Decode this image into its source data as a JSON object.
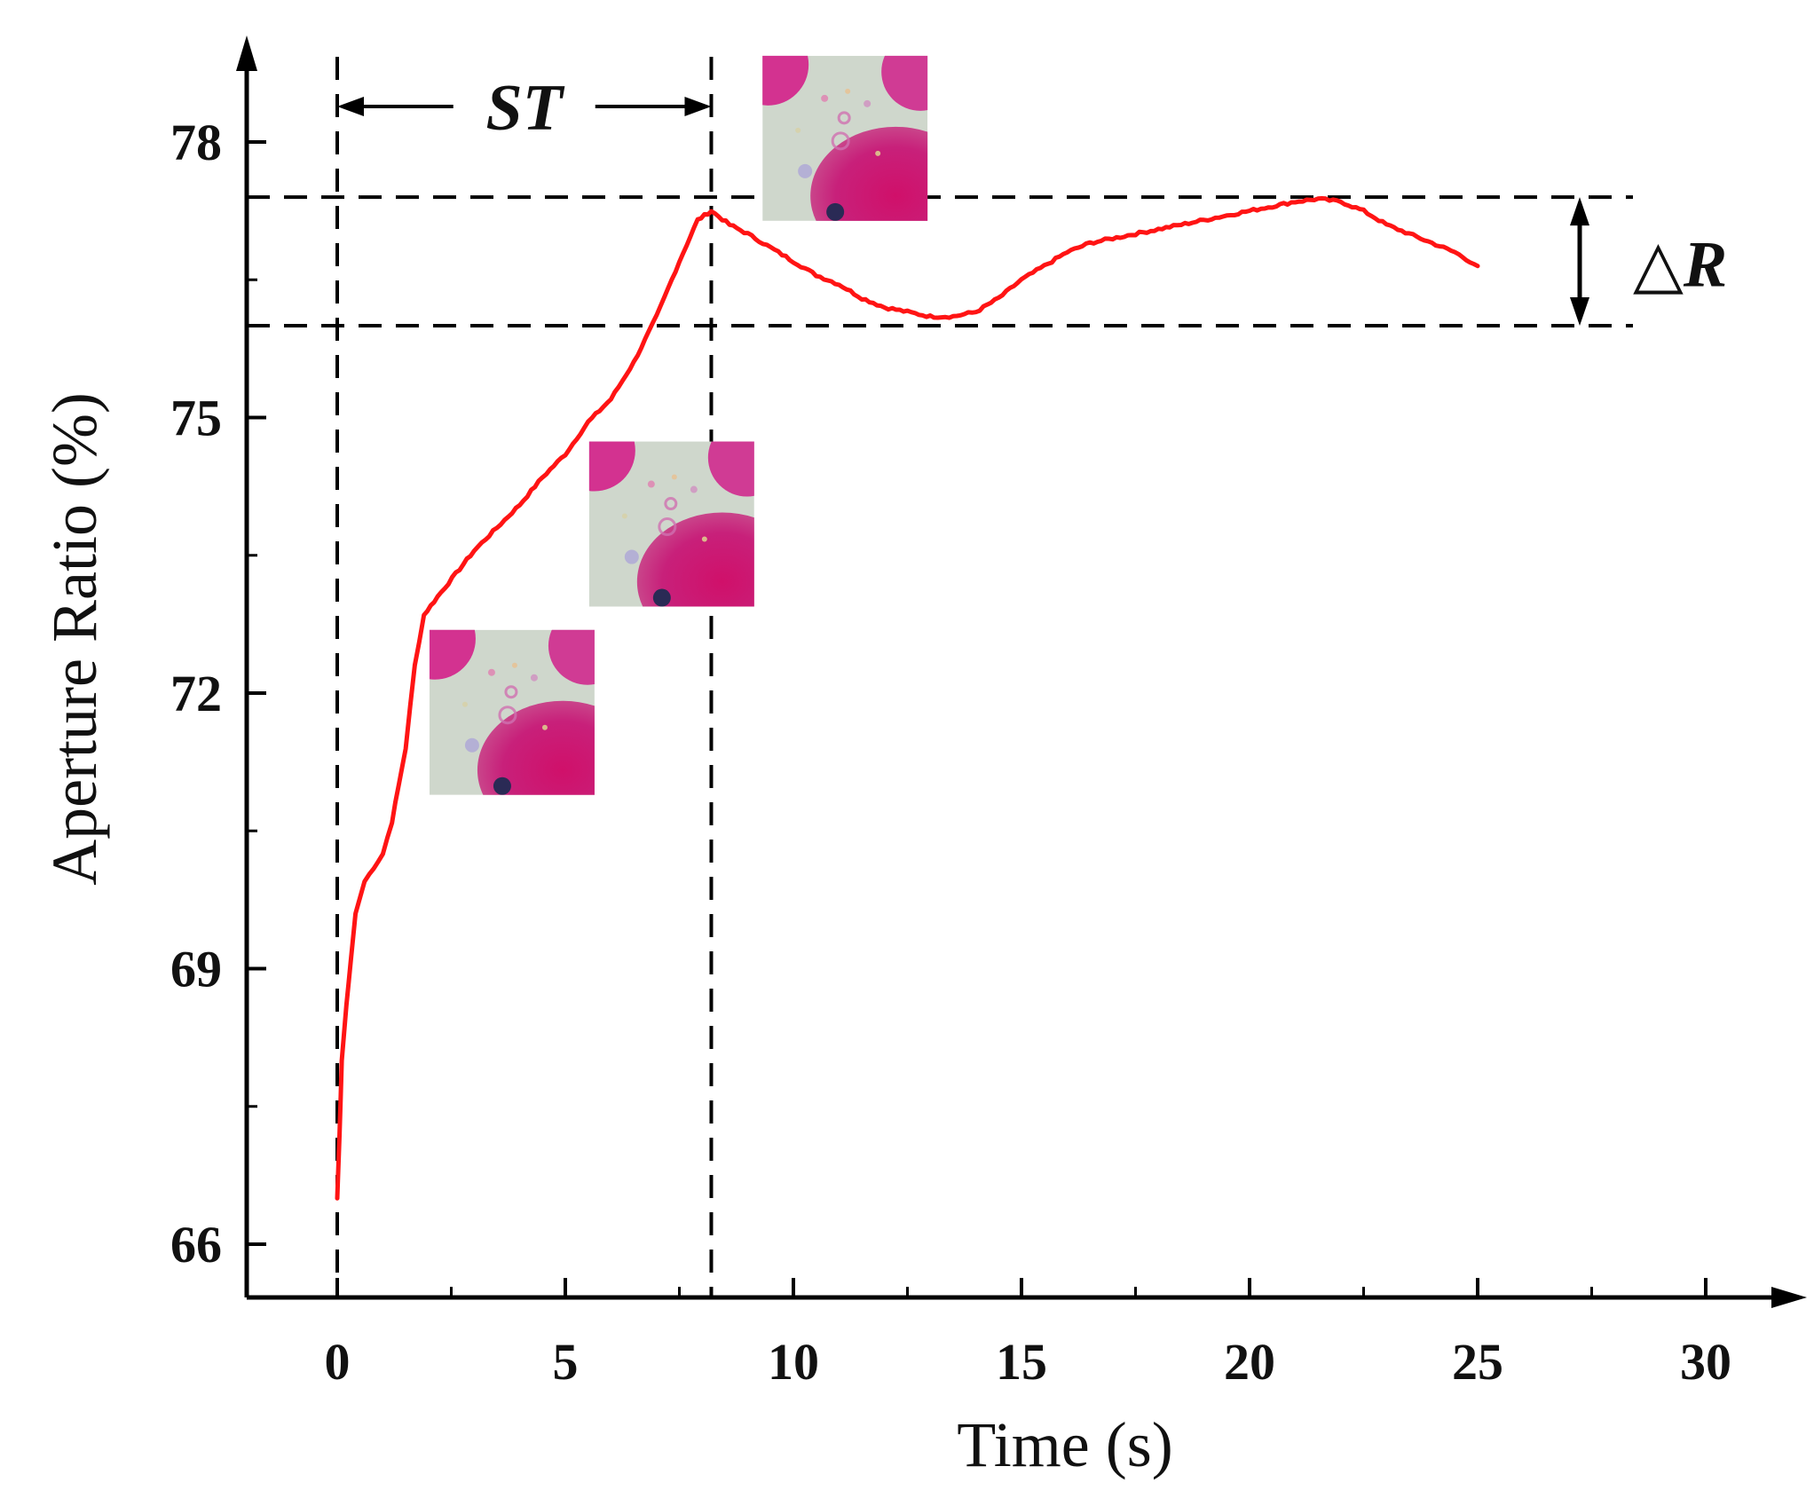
{
  "chart_data": {
    "type": "line",
    "title": "",
    "xlabel": "Time (s)",
    "ylabel": "Aperture Ratio (%)",
    "xlim": [
      -2,
      31
    ],
    "ylim": [
      65.5,
      78.8
    ],
    "xticks": [
      0,
      5,
      10,
      15,
      20,
      25,
      30
    ],
    "xtick_labels": [
      "0",
      "5",
      "10",
      "15",
      "20",
      "25",
      "30"
    ],
    "yticks": [
      66,
      69,
      72,
      75,
      78
    ],
    "ytick_labels": [
      "66",
      "69",
      "72",
      "75",
      "78"
    ],
    "grid": false,
    "series": [
      {
        "name": "Aperture Ratio",
        "color": "#ff1414",
        "x": [
          0,
          0.05,
          0.1,
          0.2,
          0.3,
          0.4,
          0.6,
          0.8,
          1.0,
          1.2,
          1.5,
          1.7,
          1.9,
          2.2,
          2.6,
          3.0,
          3.5,
          4.0,
          4.5,
          5.0,
          5.5,
          6.0,
          6.5,
          7.0,
          7.5,
          7.9,
          8.2,
          8.6,
          9.0,
          9.5,
          10.0,
          10.5,
          11.0,
          11.5,
          12.0,
          12.5,
          13.0,
          13.5,
          14.0,
          14.5,
          15.0,
          15.5,
          16.0,
          16.5,
          17.0,
          17.5,
          18.0,
          18.5,
          19.0,
          19.5,
          20.0,
          20.5,
          21.0,
          21.5,
          22.0,
          22.5,
          23.0,
          23.5,
          24.0,
          24.5,
          25.0
        ],
        "values": [
          66.5,
          67.2,
          68.0,
          68.6,
          69.1,
          69.6,
          69.95,
          70.1,
          70.25,
          70.6,
          71.4,
          72.3,
          72.85,
          73.05,
          73.3,
          73.55,
          73.8,
          74.05,
          74.35,
          74.6,
          74.95,
          75.2,
          75.6,
          76.1,
          76.7,
          77.15,
          77.25,
          77.1,
          77.0,
          76.85,
          76.7,
          76.55,
          76.45,
          76.3,
          76.2,
          76.15,
          76.1,
          76.1,
          76.15,
          76.3,
          76.5,
          76.65,
          76.8,
          76.9,
          76.95,
          77.0,
          77.05,
          77.1,
          77.15,
          77.2,
          77.25,
          77.3,
          77.35,
          77.38,
          77.35,
          77.25,
          77.1,
          77.0,
          76.9,
          76.8,
          76.65
        ]
      }
    ],
    "reference_lines": {
      "vertical_x": [
        0,
        8.2
      ],
      "horizontal_y": [
        77.4,
        76.0
      ]
    },
    "annotations": {
      "st_label": "ST",
      "delta_r_symbol": "△",
      "delta_r_letter": "R"
    },
    "inset_images": [
      {
        "name": "droplet snapshot",
        "x": 2.1,
        "y": 72.65,
        "description_key": "early"
      },
      {
        "name": "droplet snapshot",
        "x": 5.6,
        "y": 74.7,
        "description_key": "middle"
      },
      {
        "name": "droplet snapshot",
        "x": 9.4,
        "y": 78.9,
        "description_key": "steady"
      }
    ]
  }
}
